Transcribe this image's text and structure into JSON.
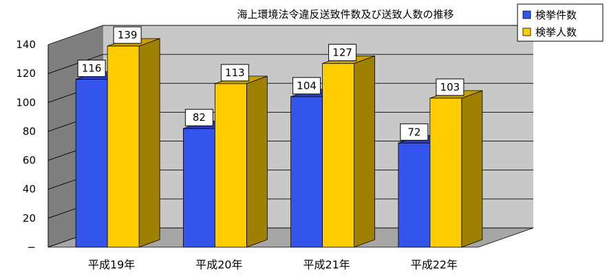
{
  "chart_data": {
    "type": "bar",
    "title": "海上環境法令違反送致件数及び送致人数の推移",
    "categories": [
      "平成19年",
      "平成20年",
      "平成21年",
      "平成22年"
    ],
    "series": [
      {
        "name": "検挙件数",
        "values": [
          116,
          82,
          104,
          72
        ]
      },
      {
        "name": "検挙人数",
        "values": [
          139,
          113,
          127,
          103
        ]
      }
    ],
    "ylim": [
      0,
      140
    ],
    "yticks": [
      "−",
      "20",
      "40",
      "60",
      "80",
      "100",
      "120",
      "140"
    ],
    "xlabel": "",
    "ylabel": "",
    "grid": true,
    "legend_position": "top-right",
    "three_d": true,
    "colors": {
      "series": [
        "#3355EE",
        "#FFCC00"
      ],
      "series_side": [
        "#1A2A90",
        "#A08000"
      ],
      "series_top": [
        "#2A40C0",
        "#C8A000"
      ],
      "wall": "#C8C8C8",
      "floor": "#A6A6A6",
      "side_wall": "#7F7F7F",
      "grid": "#000000"
    }
  }
}
